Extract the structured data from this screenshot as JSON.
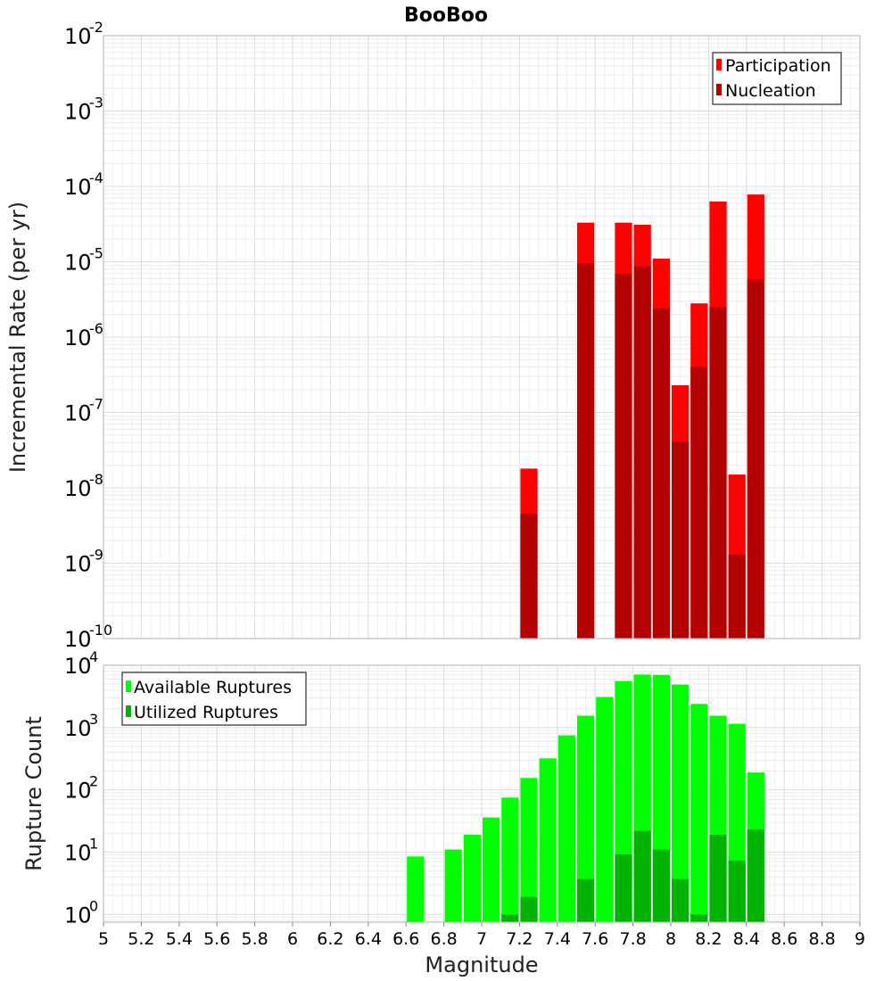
{
  "title": "BooBoo",
  "xlabel": "Magnitude",
  "chart_data": [
    {
      "type": "bar",
      "panel": "top",
      "ylabel": "Incremental Rate (per yr)",
      "yscale": "log",
      "ylim": [
        1e-10,
        0.01
      ],
      "xlim": [
        5,
        9
      ],
      "bar_width": 0.1,
      "grid": true,
      "legend_position": "top-right",
      "y_tick_labels": [
        {
          "base": "10",
          "exp": "-10",
          "value": 1e-10
        },
        {
          "base": "10",
          "exp": "-9",
          "value": 1e-09
        },
        {
          "base": "10",
          "exp": "-8",
          "value": 1e-08
        },
        {
          "base": "10",
          "exp": "-7",
          "value": 1e-07
        },
        {
          "base": "10",
          "exp": "-6",
          "value": 1e-06
        },
        {
          "base": "10",
          "exp": "-5",
          "value": 1e-05
        },
        {
          "base": "10",
          "exp": "-4",
          "value": 0.0001
        },
        {
          "base": "10",
          "exp": "-3",
          "value": 0.001
        },
        {
          "base": "10",
          "exp": "-2",
          "value": 0.01
        }
      ],
      "x": [
        7.25,
        7.55,
        7.75,
        7.85,
        7.95,
        8.05,
        8.15,
        8.25,
        8.35,
        8.45
      ],
      "series": [
        {
          "name": "Participation",
          "color": "#ff0000",
          "values": [
            1.8e-08,
            3.3e-05,
            3.3e-05,
            3.1e-05,
            1.1e-05,
            2.3e-07,
            2.8e-06,
            6.3e-05,
            1.5e-08,
            7.8e-05
          ]
        },
        {
          "name": "Nucleation",
          "color": "#b30000",
          "values": [
            4.5e-09,
            9.5e-06,
            6.9e-06,
            8.7e-06,
            2.4e-06,
            4.1e-08,
            4e-07,
            2.5e-06,
            1.3e-09,
            5.8e-06
          ]
        }
      ]
    },
    {
      "type": "bar",
      "panel": "bottom",
      "ylabel": "Rupture Count",
      "yscale": "log",
      "ylim": [
        0.75,
        10000
      ],
      "xlim": [
        5,
        9
      ],
      "bar_width": 0.1,
      "grid": true,
      "legend_position": "top-left",
      "y_tick_labels": [
        {
          "base": "10",
          "exp": "0",
          "value": 1
        },
        {
          "base": "10",
          "exp": "1",
          "value": 10
        },
        {
          "base": "10",
          "exp": "2",
          "value": 100
        },
        {
          "base": "10",
          "exp": "3",
          "value": 1000
        },
        {
          "base": "10",
          "exp": "4",
          "value": 10000
        }
      ],
      "x": [
        6.65,
        6.85,
        6.95,
        7.05,
        7.15,
        7.25,
        7.35,
        7.45,
        7.55,
        7.65,
        7.75,
        7.85,
        7.95,
        8.05,
        8.15,
        8.25,
        8.35,
        8.45
      ],
      "series": [
        {
          "name": "Available Ruptures",
          "color": "#00ff00",
          "values": [
            8.5,
            11,
            19,
            36,
            75,
            155,
            320,
            750,
            1550,
            3100,
            5600,
            7100,
            7000,
            4900,
            2400,
            1550,
            1150,
            190
          ]
        },
        {
          "name": "Utilized Ruptures",
          "color": "#00b300",
          "values": [
            0,
            0,
            0,
            0,
            1,
            1.9,
            0,
            0,
            3.7,
            0,
            9.2,
            22,
            11,
            3.7,
            1,
            19,
            7.3,
            23
          ]
        }
      ]
    }
  ],
  "x_ticks": [
    "5",
    "5.2",
    "5.4",
    "5.6",
    "5.8",
    "6",
    "6.2",
    "6.4",
    "6.6",
    "6.8",
    "7",
    "7.2",
    "7.4",
    "7.6",
    "7.8",
    "8",
    "8.2",
    "8.4",
    "8.6",
    "8.8",
    "9"
  ]
}
